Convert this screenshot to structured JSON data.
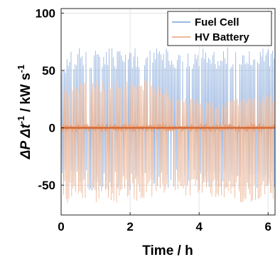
{
  "chart_data": {
    "type": "line",
    "xlabel": "Time / h",
    "ylabel_parts": {
      "delta_p": "ΔP Δ",
      "t": "t",
      "exponent": "-1",
      "unit": " / kW s",
      "unit_exponent": "-1"
    },
    "xlim": [
      0,
      6.2
    ],
    "ylim": [
      -76,
      104
    ],
    "xticks": [
      0,
      2,
      4,
      6
    ],
    "yticks": [
      -50,
      0,
      50,
      100
    ],
    "xtick_labels": [
      "0",
      "2",
      "4",
      "6"
    ],
    "ytick_labels": [
      "-50",
      "0",
      "50",
      "100"
    ],
    "grid": true,
    "legend_position": "top-right",
    "series": [
      {
        "name": "Fuel Cell",
        "color": "#7aa0d8",
        "typical_peak_max": 68,
        "typical_peak_min": -55,
        "envelope_max": [
          {
            "x": 0.0,
            "y": 50
          },
          {
            "x": 0.3,
            "y": 68
          },
          {
            "x": 1.0,
            "y": 68
          },
          {
            "x": 2.0,
            "y": 69
          },
          {
            "x": 3.0,
            "y": 69
          },
          {
            "x": 4.0,
            "y": 68
          },
          {
            "x": 5.0,
            "y": 69
          },
          {
            "x": 6.2,
            "y": 68
          }
        ],
        "envelope_min": [
          {
            "x": 0.0,
            "y": -45
          },
          {
            "x": 1.0,
            "y": -55
          },
          {
            "x": 2.0,
            "y": -53
          },
          {
            "x": 3.0,
            "y": -52
          },
          {
            "x": 4.0,
            "y": -52
          },
          {
            "x": 5.0,
            "y": -52
          },
          {
            "x": 6.2,
            "y": -52
          }
        ]
      },
      {
        "name": "HV Battery",
        "color": "#e8a37c",
        "envelope_max": [
          {
            "x": 0.0,
            "y": 35
          },
          {
            "x": 0.5,
            "y": 40
          },
          {
            "x": 1.5,
            "y": 43
          },
          {
            "x": 2.5,
            "y": 42
          },
          {
            "x": 3.5,
            "y": 26
          },
          {
            "x": 4.5,
            "y": 22
          },
          {
            "x": 5.5,
            "y": 28
          },
          {
            "x": 6.2,
            "y": 30
          }
        ],
        "envelope_min": [
          {
            "x": 0.0,
            "y": -65
          },
          {
            "x": 1.0,
            "y": -66
          },
          {
            "x": 2.0,
            "y": -63
          },
          {
            "x": 3.0,
            "y": -60
          },
          {
            "x": 4.0,
            "y": -62
          },
          {
            "x": 5.0,
            "y": -65
          },
          {
            "x": 6.2,
            "y": -65
          }
        ]
      }
    ]
  }
}
